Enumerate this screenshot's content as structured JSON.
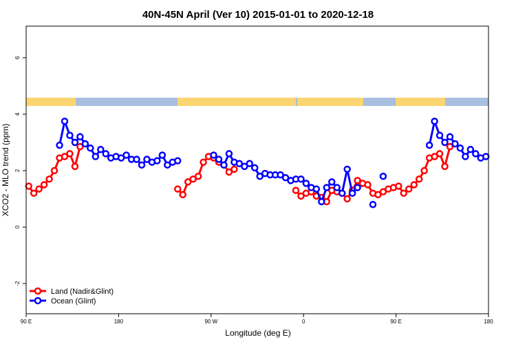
{
  "chart_data": {
    "type": "line",
    "title": "40N-45N April (Ver 10)   2015-01-01 to 2020-12-18",
    "xlabel": "Longitude (deg E)",
    "ylabel": "XCO2 - MLO trend (ppm)",
    "x": [
      92.5,
      97.5,
      102.5,
      107.5,
      112.5,
      117.5,
      122.5,
      127.5,
      132.5,
      137.5,
      142.5,
      147.5,
      152.5,
      157.5,
      162.5,
      167.5,
      172.5,
      177.5,
      182.5,
      187.5,
      192.5,
      197.5,
      202.5,
      207.5,
      212.5,
      217.5,
      222.5,
      227.5,
      232.5,
      237.5,
      242.5,
      247.5,
      252.5,
      257.5,
      262.5,
      267.5,
      272.5,
      277.5,
      282.5,
      287.5,
      292.5,
      297.5,
      302.5,
      307.5,
      312.5,
      317.5,
      322.5,
      327.5,
      332.5,
      337.5,
      342.5,
      347.5,
      352.5,
      357.5,
      362.5,
      367.5,
      372.5,
      377.5,
      382.5,
      387.5,
      392.5,
      397.5,
      402.5,
      407.5,
      412.5,
      417.5,
      422.5,
      427.5,
      432.5,
      437.5,
      442.5,
      447.5,
      452.5,
      457.5,
      462.5,
      467.5,
      472.5,
      477.5,
      482.5,
      487.5,
      492.5,
      497.5,
      502.5,
      507.5,
      512.5,
      517.5,
      522.5,
      527.5,
      532.5,
      537.5
    ],
    "series": [
      {
        "name": "Land (Nadir&Glint)",
        "color": "#ff0000",
        "values": [
          1.45,
          1.2,
          1.35,
          1.5,
          1.7,
          2.0,
          2.45,
          2.5,
          2.6,
          2.15,
          2.85,
          null,
          null,
          null,
          null,
          null,
          null,
          null,
          null,
          null,
          null,
          null,
          null,
          null,
          null,
          null,
          null,
          null,
          null,
          1.35,
          1.15,
          1.6,
          1.7,
          1.8,
          2.3,
          2.5,
          2.45,
          2.3,
          2.2,
          1.95,
          2.05,
          null,
          null,
          null,
          null,
          null,
          null,
          null,
          null,
          null,
          null,
          null,
          1.3,
          1.1,
          1.2,
          1.25,
          1.1,
          1.05,
          0.9,
          1.3,
          1.25,
          1.2,
          1.0,
          1.3,
          1.65,
          1.55,
          1.5,
          1.2,
          1.15,
          1.25,
          1.35,
          1.4,
          1.45,
          1.2,
          1.35,
          1.5,
          1.7,
          2.0,
          2.45,
          2.5,
          2.6,
          2.15,
          2.85,
          null,
          null,
          null,
          null,
          null,
          null,
          null
        ]
      },
      {
        "name": "Ocean (Glint)",
        "color": "#0000ff",
        "values": [
          null,
          null,
          null,
          null,
          null,
          null,
          2.9,
          3.75,
          3.25,
          3.0,
          3.2,
          2.95,
          2.8,
          2.5,
          2.75,
          2.6,
          2.45,
          2.5,
          2.45,
          2.55,
          2.4,
          2.4,
          2.2,
          2.4,
          2.3,
          2.35,
          2.55,
          2.2,
          2.3,
          2.35,
          null,
          null,
          null,
          null,
          null,
          null,
          2.55,
          2.4,
          2.2,
          2.6,
          2.3,
          2.25,
          2.15,
          2.25,
          2.1,
          1.8,
          1.9,
          1.85,
          1.85,
          1.85,
          1.75,
          1.65,
          1.7,
          1.7,
          1.55,
          1.4,
          1.35,
          0.9,
          1.4,
          1.6,
          1.4,
          1.2,
          2.05,
          1.2,
          1.4,
          null,
          null,
          0.8,
          null,
          1.8,
          null,
          null,
          null,
          null,
          null,
          null,
          null,
          null,
          2.9,
          3.75,
          3.25,
          3.0,
          3.2,
          2.95,
          2.8,
          2.5,
          2.75,
          2.6,
          2.45,
          2.5
        ]
      }
    ],
    "xlim": [
      90,
      540
    ],
    "xticks": [
      {
        "value": 90,
        "label": "90 E"
      },
      180,
      {
        "value": 270,
        "label": "90 W"
      },
      {
        "value": 360,
        "label": "0"
      },
      {
        "value": 450,
        "label": "90 E"
      },
      {
        "value": 540,
        "label": "180"
      }
    ],
    "ylim": [
      -3.07,
      7.12
    ],
    "yticks": [
      -2,
      0,
      2,
      4,
      6
    ],
    "legend": "bottom-left"
  }
}
